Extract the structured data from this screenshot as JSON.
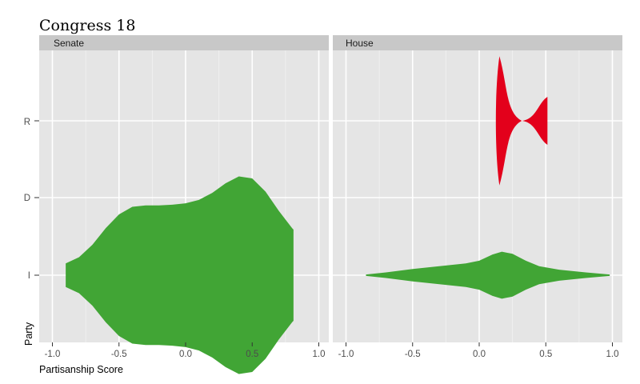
{
  "chart_data": {
    "type": "violin",
    "title": "Congress 18",
    "xlabel": "Partisanship Score",
    "ylabel": "Party",
    "xlim": [
      -1.0,
      1.0
    ],
    "x_ticks": [
      "-1.0",
      "-0.5",
      "0.0",
      "0.5",
      "1.0"
    ],
    "y_categories": [
      "I",
      "D",
      "R"
    ],
    "colors": {
      "I": "#41a535",
      "R": "#e3001b",
      "panel_bg": "#e5e5e5",
      "strip_bg": "#c8c8c8",
      "grid": "#ffffff"
    },
    "panels": [
      {
        "name": "Senate",
        "violins": [
          {
            "party": "I",
            "color_key": "I",
            "profile": [
              [
                -0.9,
                0.17
              ],
              [
                -0.8,
                0.26
              ],
              [
                -0.7,
                0.44
              ],
              [
                -0.6,
                0.68
              ],
              [
                -0.5,
                0.88
              ],
              [
                -0.4,
                0.99
              ],
              [
                -0.3,
                1.01
              ],
              [
                -0.2,
                1.01
              ],
              [
                -0.1,
                1.02
              ],
              [
                0.0,
                1.04
              ],
              [
                0.1,
                1.09
              ],
              [
                0.2,
                1.19
              ],
              [
                0.3,
                1.33
              ],
              [
                0.4,
                1.43
              ],
              [
                0.5,
                1.4
              ],
              [
                0.6,
                1.21
              ],
              [
                0.7,
                0.93
              ],
              [
                0.8,
                0.68
              ],
              [
                0.81,
                0.66
              ]
            ]
          }
        ]
      },
      {
        "name": "House",
        "violins": [
          {
            "party": "I",
            "color_key": "I",
            "profile": [
              [
                -0.85,
                0.01
              ],
              [
                -0.7,
                0.04
              ],
              [
                -0.5,
                0.09
              ],
              [
                -0.3,
                0.13
              ],
              [
                -0.1,
                0.17
              ],
              [
                0.0,
                0.21
              ],
              [
                0.1,
                0.3
              ],
              [
                0.17,
                0.34
              ],
              [
                0.25,
                0.31
              ],
              [
                0.35,
                0.21
              ],
              [
                0.45,
                0.13
              ],
              [
                0.6,
                0.08
              ],
              [
                0.8,
                0.04
              ],
              [
                0.98,
                0.01
              ]
            ]
          },
          {
            "party": "R",
            "color_key": "R",
            "profile": [
              [
                -0.85,
                0.5
              ],
              [
                -0.7,
                0.3
              ],
              [
                -0.5,
                0.15
              ],
              [
                -0.3,
                0.1
              ],
              [
                -0.1,
                0.08
              ],
              [
                0.0,
                0.08
              ],
              [
                0.1,
                0.06
              ],
              [
                0.2,
                0.02
              ],
              [
                0.3,
                0.0
              ],
              [
                0.4,
                0.02
              ],
              [
                0.5,
                0.14
              ],
              [
                0.6,
                0.25
              ]
            ],
            "position_y": [
              [
                -0.85,
                0.14
              ],
              [
                -0.7,
                0.14
              ],
              [
                -0.5,
                0.15
              ],
              [
                -0.3,
                0.16
              ],
              [
                -0.1,
                0.2
              ],
              [
                0.0,
                0.23
              ],
              [
                0.1,
                0.25
              ],
              [
                0.2,
                0.29
              ],
              [
                0.3,
                0.33
              ],
              [
                0.4,
                0.43
              ],
              [
                0.5,
                0.51
              ],
              [
                0.6,
                0.51
              ]
            ]
          }
        ]
      }
    ]
  }
}
